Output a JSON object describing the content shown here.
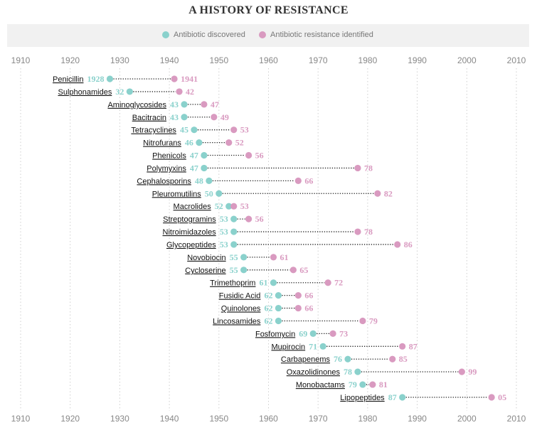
{
  "chart_data": {
    "type": "dumbbell",
    "title": "A HISTORY OF RESISTANCE",
    "legend": [
      {
        "label": "Antibiotic discovered",
        "color": "#8ad1cc"
      },
      {
        "label": "Antibiotic resistance identified",
        "color": "#d99ac0"
      }
    ],
    "x_ticks": [
      "1910",
      "1920",
      "1930",
      "1940",
      "1950",
      "1960",
      "1970",
      "1980",
      "1990",
      "2000",
      "2010"
    ],
    "xlim": [
      1910,
      2010
    ],
    "series": [
      {
        "name": "Penicillin",
        "discovered": 1928,
        "resistance": 1941,
        "discovered_label": "1928",
        "resistance_label": "1941"
      },
      {
        "name": "Sulphonamides",
        "discovered": 1932,
        "resistance": 1942,
        "discovered_label": "32",
        "resistance_label": "42"
      },
      {
        "name": "Aminoglycosides",
        "discovered": 1943,
        "resistance": 1947,
        "discovered_label": "43",
        "resistance_label": "47"
      },
      {
        "name": "Bacitracin",
        "discovered": 1943,
        "resistance": 1949,
        "discovered_label": "43",
        "resistance_label": "49"
      },
      {
        "name": "Tetracyclines",
        "discovered": 1945,
        "resistance": 1953,
        "discovered_label": "45",
        "resistance_label": "53"
      },
      {
        "name": "Nitrofurans",
        "discovered": 1946,
        "resistance": 1952,
        "discovered_label": "46",
        "resistance_label": "52"
      },
      {
        "name": "Phenicols",
        "discovered": 1947,
        "resistance": 1956,
        "discovered_label": "47",
        "resistance_label": "56"
      },
      {
        "name": "Polymyxins",
        "discovered": 1947,
        "resistance": 1978,
        "discovered_label": "47",
        "resistance_label": "78"
      },
      {
        "name": "Cephalosporins",
        "discovered": 1948,
        "resistance": 1966,
        "discovered_label": "48",
        "resistance_label": "66"
      },
      {
        "name": "Pleuromutilins",
        "discovered": 1950,
        "resistance": 1982,
        "discovered_label": "50",
        "resistance_label": "82"
      },
      {
        "name": "Macrolides",
        "discovered": 1952,
        "resistance": 1953,
        "discovered_label": "52",
        "resistance_label": "53"
      },
      {
        "name": "Streptogramins",
        "discovered": 1953,
        "resistance": 1956,
        "discovered_label": "53",
        "resistance_label": "56"
      },
      {
        "name": "Nitroimidazoles",
        "discovered": 1953,
        "resistance": 1978,
        "discovered_label": "53",
        "resistance_label": "78"
      },
      {
        "name": "Glycopeptides",
        "discovered": 1953,
        "resistance": 1986,
        "discovered_label": "53",
        "resistance_label": "86"
      },
      {
        "name": "Novobiocin",
        "discovered": 1955,
        "resistance": 1961,
        "discovered_label": "55",
        "resistance_label": "61"
      },
      {
        "name": "Cycloserine",
        "discovered": 1955,
        "resistance": 1965,
        "discovered_label": "55",
        "resistance_label": "65"
      },
      {
        "name": "Trimethoprim",
        "discovered": 1961,
        "resistance": 1972,
        "discovered_label": "61",
        "resistance_label": "72"
      },
      {
        "name": "Fusidic Acid",
        "discovered": 1962,
        "resistance": 1966,
        "discovered_label": "62",
        "resistance_label": "66"
      },
      {
        "name": "Quinolones",
        "discovered": 1962,
        "resistance": 1966,
        "discovered_label": "62",
        "resistance_label": "66"
      },
      {
        "name": "Lincosamides",
        "discovered": 1962,
        "resistance": 1979,
        "discovered_label": "62",
        "resistance_label": "79"
      },
      {
        "name": "Fosfomycin",
        "discovered": 1969,
        "resistance": 1973,
        "discovered_label": "69",
        "resistance_label": "73"
      },
      {
        "name": "Mupirocin",
        "discovered": 1971,
        "resistance": 1987,
        "discovered_label": "71",
        "resistance_label": "87"
      },
      {
        "name": "Carbapenems",
        "discovered": 1976,
        "resistance": 1985,
        "discovered_label": "76",
        "resistance_label": "85"
      },
      {
        "name": "Oxazolidinones",
        "discovered": 1978,
        "resistance": 1999,
        "discovered_label": "78",
        "resistance_label": "99"
      },
      {
        "name": "Monobactams",
        "discovered": 1979,
        "resistance": 1981,
        "discovered_label": "79",
        "resistance_label": "81"
      },
      {
        "name": "Lipopeptides",
        "discovered": 1987,
        "resistance": 2005,
        "discovered_label": "87",
        "resistance_label": "05"
      }
    ]
  }
}
